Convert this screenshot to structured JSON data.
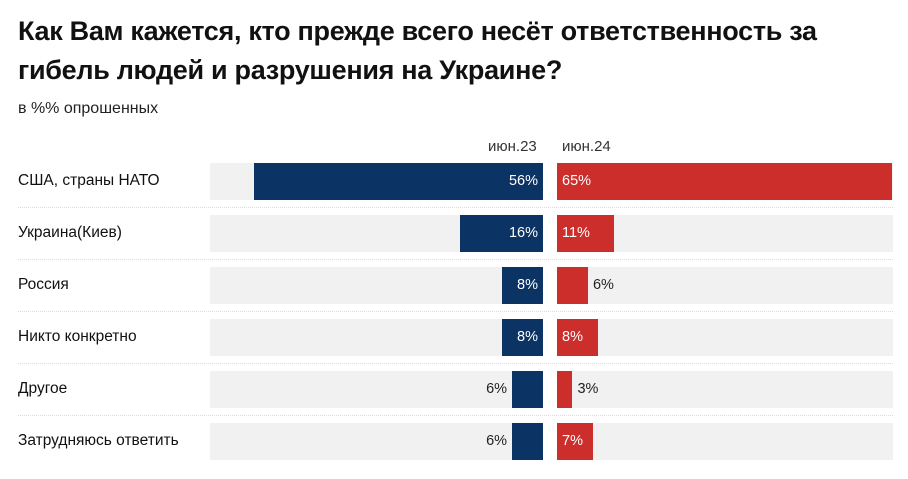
{
  "chart_data": {
    "type": "bar",
    "title": "Как Вам кажется, кто прежде всего несёт ответственность за гибель людей и разрушения на Украине?",
    "subtitle": "в %% опрошенных",
    "categories": [
      "США, страны НАТО",
      "Украина(Киев)",
      "Россия",
      "Никто конкретно",
      "Другое",
      "Затрудняюсь ответить"
    ],
    "series": [
      {
        "name": "июн.23",
        "values": [
          56,
          16,
          8,
          8,
          6,
          6
        ],
        "labels": [
          "56%",
          "16%",
          "8%",
          "8%",
          "6%",
          "6%"
        ],
        "color": "#0b3363"
      },
      {
        "name": "июн.24",
        "values": [
          65,
          11,
          6,
          8,
          3,
          7
        ],
        "labels": [
          "65%",
          "11%",
          "6%",
          "8%",
          "3%",
          "7%"
        ],
        "color": "#cc2e2b"
      }
    ],
    "xlim": [
      0,
      65
    ],
    "background_color": "#f1f1f1"
  }
}
